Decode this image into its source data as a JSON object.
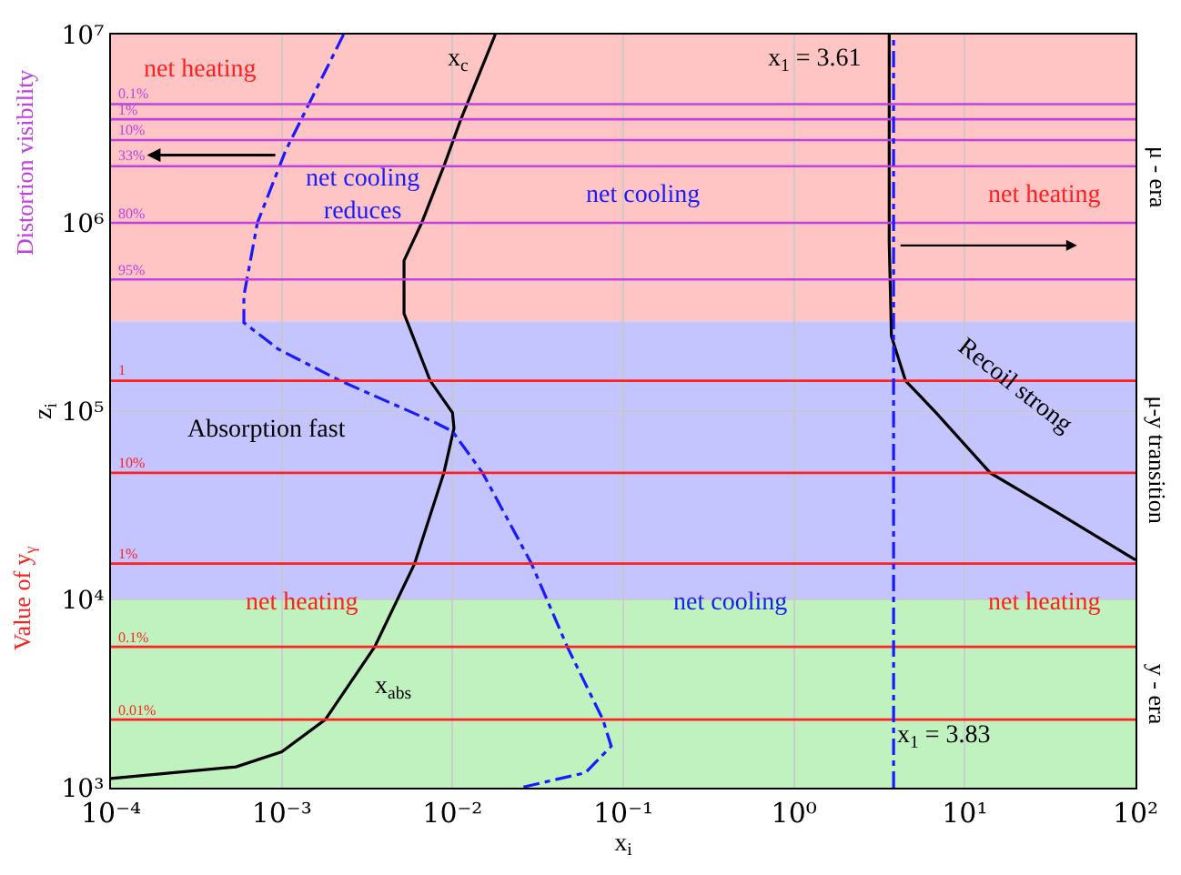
{
  "chart_data": {
    "type": "line",
    "xlabel": "x$_{i}$",
    "ylabel": "z$_{i}$",
    "log": "xy",
    "grid": true,
    "legend": false,
    "xlim": [
      0.0001,
      100
    ],
    "ylim": [
      1000,
      10000000
    ],
    "xticks": [
      {
        "value": 0.0001,
        "label": "10⁻⁴"
      },
      {
        "value": 0.001,
        "label": "10⁻³"
      },
      {
        "value": 0.01,
        "label": "10⁻²"
      },
      {
        "value": 0.1,
        "label": "10⁻¹"
      },
      {
        "value": 1,
        "label": "10⁰"
      },
      {
        "value": 10,
        "label": "10¹"
      },
      {
        "value": 100,
        "label": "10²"
      }
    ],
    "yticks": [
      {
        "value": 1000,
        "label": "10³"
      },
      {
        "value": 10000,
        "label": "10⁴"
      },
      {
        "value": 100000,
        "label": "10⁵"
      },
      {
        "value": 1000000,
        "label": "10⁶"
      },
      {
        "value": 10000000,
        "label": "10⁷"
      }
    ],
    "series": [
      {
        "color": "#000000",
        "line_style": "solid",
        "x": [
          0.0178,
          0.0112,
          0.0089,
          0.0066,
          0.0052,
          0.0052,
          0.0074,
          0.01,
          0.0102,
          0.0089,
          0.006,
          0.0035,
          0.0018,
          0.001,
          0.00054,
          0.0001
        ],
        "values": [
          10000000,
          3550000,
          2000000,
          1000000,
          630000,
          330000,
          145000,
          98000,
          81000,
          47000,
          15500,
          5600,
          2300,
          1550,
          1290,
          1120
        ]
      },
      {
        "color": "#1a1aff",
        "line_style": "dashed",
        "x": [
          0.0023,
          0.00105,
          0.00072,
          0.0006,
          0.0006,
          0.00095,
          0.0022,
          0.0079,
          0.01,
          0.015,
          0.029,
          0.047,
          0.076,
          0.085,
          0.06,
          0.025
        ],
        "values": [
          10000000,
          2400000,
          1000000,
          410000,
          295000,
          214000,
          145000,
          87000,
          78000,
          47000,
          15500,
          5600,
          2300,
          1660,
          1200,
          1000
        ]
      },
      {
        "color": "#000000",
        "line_style": "solid",
        "x": [
          3.61,
          3.61,
          3.72,
          4.5,
          6.8,
          14.1,
          34.7,
          100
        ],
        "values": [
          10000000,
          790000,
          250000,
          145000,
          98000,
          47000,
          29000,
          16200
        ]
      },
      {
        "name": "0.1%",
        "color": "#c040e0",
        "line_style": "solid",
        "x": [
          0.0001,
          100
        ],
        "values": [
          4270000,
          4270000
        ]
      },
      {
        "name": "1%",
        "color": "#c040e0",
        "line_style": "solid",
        "x": [
          0.0001,
          100
        ],
        "values": [
          3550000,
          3550000
        ]
      },
      {
        "name": "10%",
        "color": "#c040e0",
        "line_style": "solid",
        "x": [
          0.0001,
          100
        ],
        "values": [
          2750000,
          2750000
        ]
      },
      {
        "name": "33%",
        "color": "#c040e0",
        "line_style": "solid",
        "x": [
          0.0001,
          100
        ],
        "values": [
          2000000,
          2000000
        ]
      },
      {
        "name": "80%",
        "color": "#c040e0",
        "line_style": "solid",
        "x": [
          0.0001,
          100
        ],
        "values": [
          1000000,
          1000000
        ]
      },
      {
        "name": "95%",
        "color": "#c040e0",
        "line_style": "solid",
        "x": [
          0.0001,
          100
        ],
        "values": [
          500000,
          500000
        ]
      },
      {
        "name": "1",
        "color": "#ff2020",
        "line_style": "solid",
        "x": [
          0.0001,
          100
        ],
        "values": [
          145000,
          145000
        ]
      },
      {
        "name": "10%",
        "color": "#ff2020",
        "line_style": "solid",
        "x": [
          0.0001,
          100
        ],
        "values": [
          47000,
          47000
        ]
      },
      {
        "name": "1%",
        "color": "#ff2020",
        "line_style": "solid",
        "x": [
          0.0001,
          100
        ],
        "values": [
          15500,
          15500
        ]
      },
      {
        "name": "0.1%",
        "color": "#ff2020",
        "line_style": "solid",
        "x": [
          0.0001,
          100
        ],
        "values": [
          5600,
          5600
        ]
      },
      {
        "name": "0.01%",
        "color": "#ff2020",
        "line_style": "solid",
        "x": [
          0.0001,
          100
        ],
        "values": [
          2300,
          2300
        ]
      }
    ],
    "bands": [
      {
        "axis": "y",
        "from": 300000,
        "to": 10000000,
        "label": "μ - era",
        "color": "#ffc4c4"
      },
      {
        "axis": "y",
        "from": 10000,
        "to": 300000,
        "label": "μ-y transition",
        "color": "#c4c4ff"
      },
      {
        "axis": "y",
        "from": 1000,
        "to": 10000,
        "label": "y - era",
        "color": "#c0f2c0"
      }
    ],
    "ref_lines": [
      {
        "axis": "x",
        "value": 3.83,
        "label": "x$_{1}$ = 3.83",
        "color": "#1a1aff",
        "line_style": "dashed"
      }
    ],
    "annotations": [
      "net heating",
      "net cooling",
      "net heating",
      "net cooling\nreduces",
      "Absorption fast",
      "Recoil strong",
      "net heating",
      "net cooling",
      "net heating",
      "x$_{c}$",
      "x$_{abs}$",
      "x$_{1}$ = 3.61",
      "Distortion visibility",
      "Value of y$_{γ}$"
    ]
  }
}
